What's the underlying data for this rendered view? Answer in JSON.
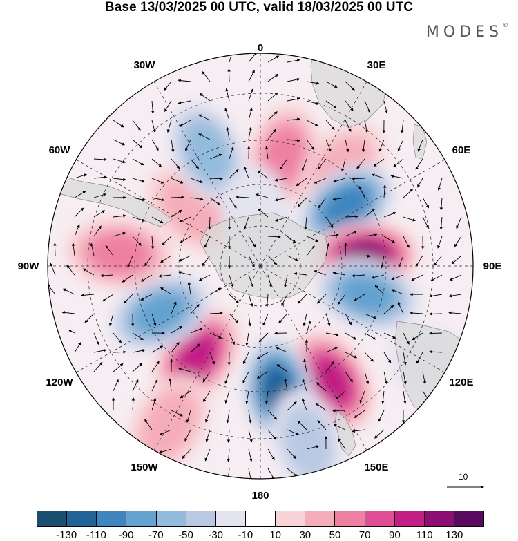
{
  "title": "Base 13/03/2025 00 UTC, valid 18/03/2025 00 UTC",
  "brand": "MODES",
  "brand_mark": "©",
  "longitude_labels": [
    "0",
    "30E",
    "60E",
    "90E",
    "120E",
    "150E",
    "180",
    "150W",
    "120W",
    "90W",
    "60W",
    "30W"
  ],
  "colorbar": {
    "colors": [
      "#1a4e6e",
      "#1f6398",
      "#3d86bf",
      "#64a2cf",
      "#93bcdc",
      "#bac9e3",
      "#e4e3f0",
      "#ffffff",
      "#f8d3d7",
      "#f5adb9",
      "#ee80a4",
      "#e04e98",
      "#c21e85",
      "#8d0e72",
      "#5a0a5e"
    ],
    "tick_labels": [
      "-130",
      "-110",
      "-90",
      "-70",
      "-50",
      "-30",
      "-10",
      "10",
      "30",
      "50",
      "70",
      "90",
      "110",
      "130"
    ]
  },
  "reference_vector": {
    "label": "10"
  },
  "anomaly_centers": [
    {
      "lon": 12,
      "lat": -50,
      "value": 60
    },
    {
      "lon": 40,
      "lat": -45,
      "value": 30
    },
    {
      "lon": 55,
      "lat": -52,
      "value": -95
    },
    {
      "lon": 85,
      "lat": -52,
      "value": 120
    },
    {
      "lon": 105,
      "lat": -50,
      "value": -85
    },
    {
      "lon": 148,
      "lat": -42,
      "value": 100
    },
    {
      "lon": 172,
      "lat": -45,
      "value": -110
    },
    {
      "lon": 165,
      "lat": -28,
      "value": -30
    },
    {
      "lon": -145,
      "lat": -50,
      "value": 100
    },
    {
      "lon": -150,
      "lat": -28,
      "value": 40
    },
    {
      "lon": -115,
      "lat": -50,
      "value": -85
    },
    {
      "lon": -85,
      "lat": -40,
      "value": 50
    },
    {
      "lon": -50,
      "lat": -58,
      "value": 30
    },
    {
      "lon": -25,
      "lat": -45,
      "value": -50
    },
    {
      "lon": -5,
      "lat": -72,
      "value": -20
    },
    {
      "lon": 120,
      "lat": -22,
      "value": -25
    }
  ]
}
